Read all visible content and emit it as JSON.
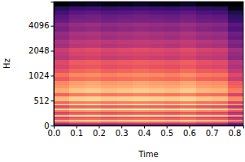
{
  "chart_data": {
    "type": "heatmap",
    "x_label": "Time",
    "y_label": "Hz",
    "log": "y",
    "xlim": [
      0,
      0.84
    ],
    "ylim": [
      0,
      8000
    ],
    "xticks": [
      {
        "value": 0,
        "label": "0.0"
      },
      {
        "value": 0.1,
        "label": "0.1"
      },
      {
        "value": 0.2,
        "label": "0.2"
      },
      {
        "value": 0.3,
        "label": "0.3"
      },
      {
        "value": 0.4,
        "label": "0.4"
      },
      {
        "value": 0.5,
        "label": "0.5"
      },
      {
        "value": 0.6,
        "label": "0.6"
      },
      {
        "value": 0.7,
        "label": "0.7"
      },
      {
        "value": 0.8,
        "label": "0.8"
      }
    ],
    "yticks": [
      0,
      512,
      1024,
      2048,
      4096
    ],
    "zlim": [
      -80,
      0
    ],
    "x_bins": [
      0,
      0.07,
      0.14,
      0.21,
      0.28,
      0.35,
      0.42,
      0.49,
      0.56,
      0.63,
      0.7,
      0.77,
      0.84
    ],
    "y_bins": [
      0,
      32,
      64,
      96,
      128,
      160,
      192,
      224,
      256,
      288,
      320,
      352,
      384,
      416,
      448,
      480,
      512,
      576,
      640,
      720,
      800,
      900,
      1000,
      1120,
      1250,
      1400,
      1600,
      1800,
      2000,
      2250,
      2500,
      2800,
      3150,
      3550,
      4000,
      4500,
      5000,
      5650,
      6350,
      7100,
      8000
    ],
    "cells": [
      [
        -49,
        -45,
        -44,
        -46,
        -45,
        -44,
        -45,
        -46,
        -44,
        -47,
        -48,
        -57
      ],
      [
        -44,
        -40,
        -39,
        -41,
        -40,
        -39,
        -40,
        -41,
        -39,
        -42,
        -43,
        -52
      ],
      [
        -29,
        -25,
        -24,
        -26,
        -25,
        -24,
        -25,
        -26,
        -24,
        -27,
        -28,
        -37
      ],
      [
        -12,
        -8,
        -7,
        -9,
        -8,
        -7,
        -8,
        -9,
        -7,
        -10,
        -11,
        -20
      ],
      [
        -29,
        -25,
        -24,
        -26,
        -25,
        -24,
        -25,
        -26,
        -24,
        -27,
        -28,
        -37
      ],
      [
        -34,
        -30,
        -29,
        -31,
        -30,
        -29,
        -30,
        -31,
        -29,
        -32,
        -33,
        -42
      ],
      [
        -9,
        -5,
        -4,
        -6,
        -5,
        -4,
        -5,
        -6,
        -4,
        -7,
        -8,
        -17
      ],
      [
        -29,
        -25,
        -24,
        -26,
        -25,
        -24,
        -25,
        -26,
        -24,
        -27,
        -28,
        -37
      ],
      [
        -34,
        -30,
        -29,
        -31,
        -30,
        -29,
        -30,
        -31,
        -29,
        -32,
        -33,
        -42
      ],
      [
        -22,
        -18,
        -17,
        -19,
        -18,
        -17,
        -18,
        -19,
        -17,
        -20,
        -21,
        -30
      ],
      [
        -7,
        -3,
        -2,
        -4,
        -3,
        -2,
        -3,
        -4,
        -2,
        -5,
        -6,
        -15
      ],
      [
        -29,
        -25,
        -24,
        -26,
        -25,
        -24,
        -25,
        -26,
        -24,
        -27,
        -28,
        -37
      ],
      [
        -32,
        -28,
        -27,
        -29,
        -28,
        -27,
        -28,
        -29,
        -27,
        -30,
        -31,
        -40
      ],
      [
        -10,
        -6,
        -5,
        -7,
        -6,
        -5,
        -6,
        -7,
        -5,
        -8,
        -9,
        -18
      ],
      [
        -29,
        -25,
        -24,
        -26,
        -25,
        -24,
        -25,
        -26,
        -24,
        -27,
        -28,
        -37
      ],
      [
        -26,
        -22,
        -21,
        -23,
        -22,
        -21,
        -22,
        -23,
        -21,
        -24,
        -25,
        -34
      ],
      [
        -12,
        -8,
        -7,
        -9,
        -8,
        -7,
        -8,
        -9,
        -7,
        -10,
        -11,
        -20
      ],
      [
        -26,
        -22,
        -21,
        -23,
        -22,
        -21,
        -22,
        -23,
        -21,
        -24,
        -25,
        -34
      ],
      [
        -14,
        -10,
        -9,
        -11,
        -10,
        -9,
        -10,
        -11,
        -9,
        -12,
        -13,
        -22
      ],
      [
        -18,
        -14,
        -13,
        -15,
        -14,
        -13,
        -14,
        -15,
        -13,
        -16,
        -17,
        -26
      ],
      [
        -20,
        -16,
        -15,
        -17,
        -16,
        -15,
        -16,
        -17,
        -15,
        -18,
        -19,
        -28
      ],
      [
        -28,
        -24,
        -23,
        -25,
        -24,
        -23,
        -24,
        -25,
        -23,
        -26,
        -27,
        -36
      ],
      [
        -24,
        -20,
        -19,
        -21,
        -20,
        -19,
        -20,
        -21,
        -19,
        -22,
        -23,
        -32
      ],
      [
        -30,
        -26,
        -25,
        -27,
        -26,
        -25,
        -26,
        -27,
        -25,
        -28,
        -29,
        -38
      ],
      [
        -34,
        -30,
        -29,
        -31,
        -30,
        -29,
        -30,
        -31,
        -29,
        -32,
        -33,
        -42
      ],
      [
        -32,
        -28,
        -27,
        -29,
        -28,
        -27,
        -28,
        -29,
        -27,
        -30,
        -31,
        -40
      ],
      [
        -40,
        -36,
        -35,
        -37,
        -36,
        -35,
        -36,
        -37,
        -35,
        -38,
        -39,
        -48
      ],
      [
        -38,
        -34,
        -33,
        -35,
        -34,
        -33,
        -34,
        -35,
        -33,
        -36,
        -37,
        -46
      ],
      [
        -36,
        -32,
        -31,
        -33,
        -32,
        -31,
        -32,
        -33,
        -31,
        -34,
        -35,
        -44
      ],
      [
        -44,
        -40,
        -39,
        -41,
        -40,
        -39,
        -40,
        -41,
        -39,
        -42,
        -43,
        -52
      ],
      [
        -42,
        -38,
        -37,
        -39,
        -38,
        -37,
        -38,
        -39,
        -37,
        -40,
        -41,
        -50
      ],
      [
        -48,
        -44,
        -43,
        -45,
        -44,
        -43,
        -44,
        -45,
        -43,
        -46,
        -47,
        -56
      ],
      [
        -46,
        -42,
        -41,
        -43,
        -42,
        -41,
        -42,
        -43,
        -41,
        -44,
        -45,
        -54
      ],
      [
        -52,
        -48,
        -47,
        -49,
        -48,
        -47,
        -48,
        -49,
        -47,
        -50,
        -51,
        -60
      ],
      [
        -50,
        -46,
        -45,
        -47,
        -46,
        -45,
        -46,
        -47,
        -45,
        -48,
        -49,
        -58
      ],
      [
        -56,
        -52,
        -51,
        -53,
        -52,
        -51,
        -52,
        -53,
        -51,
        -54,
        -55,
        -64
      ],
      [
        -58,
        -54,
        -53,
        -55,
        -54,
        -53,
        -54,
        -55,
        -53,
        -56,
        -57,
        -66
      ],
      [
        -62,
        -58,
        -57,
        -59,
        -58,
        -57,
        -58,
        -59,
        -57,
        -60,
        -61,
        -70
      ],
      [
        -68,
        -64,
        -63,
        -65,
        -64,
        -63,
        -64,
        -65,
        -63,
        -66,
        -67,
        -76
      ],
      [
        -80,
        -76,
        -75,
        -77,
        -76,
        -75,
        -76,
        -77,
        -75,
        -78,
        -79,
        -80
      ]
    ]
  }
}
